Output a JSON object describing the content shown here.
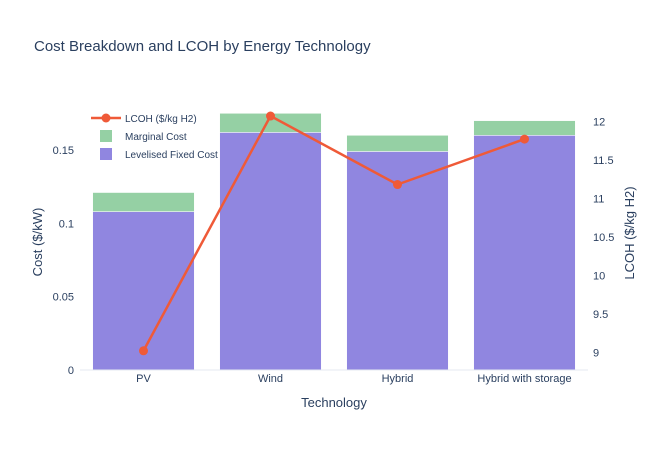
{
  "chart_data": {
    "type": "bar",
    "title": "Cost Breakdown and LCOH by Energy Technology",
    "xlabel": "Technology",
    "ylabel": "Cost ($/kW)",
    "y2label": "LCOH ($/kg H2)",
    "categories": [
      "PV",
      "Wind",
      "Hybrid",
      "Hybrid with storage"
    ],
    "ylim": [
      0,
      0.18
    ],
    "y2lim": [
      8.77,
      12.2
    ],
    "yticks": [
      0,
      0.05,
      0.1,
      0.15
    ],
    "ytick_labels": [
      "0",
      "0.05",
      "0.1",
      "0.15"
    ],
    "y2ticks": [
      9,
      9.5,
      10,
      10.5,
      11,
      11.5,
      12
    ],
    "y2tick_labels": [
      "9",
      "9.5",
      "10",
      "10.5",
      "11",
      "11.5",
      "12"
    ],
    "barmode": "stack",
    "grid": false,
    "legend_placement": "top-left",
    "series": [
      {
        "name": "Levelised Fixed Cost",
        "type": "bar",
        "axis": "left",
        "color": "#9086e0",
        "values": [
          0.108,
          0.162,
          0.149,
          0.16
        ]
      },
      {
        "name": "Marginal Cost",
        "type": "bar",
        "axis": "left",
        "color": "#95d0a4",
        "values": [
          0.013,
          0.013,
          0.011,
          0.01
        ]
      },
      {
        "name": "LCOH ($/kg H2)",
        "type": "line",
        "axis": "right",
        "color": "#ef5a38",
        "values": [
          9.02,
          12.07,
          11.18,
          11.77
        ]
      }
    ],
    "legend": [
      "LCOH ($/kg H2)",
      "Marginal Cost",
      "Levelised Fixed Cost"
    ]
  }
}
